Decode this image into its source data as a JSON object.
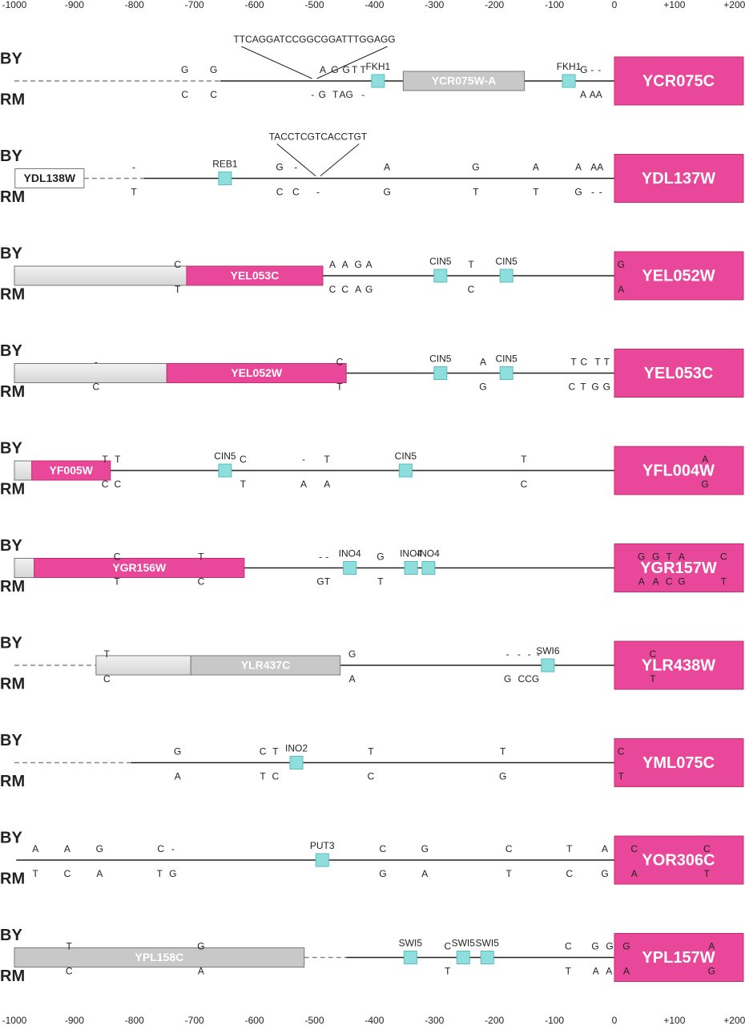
{
  "axis": {
    "lim": [
      -1000,
      200
    ],
    "ticks": [
      -1000,
      -900,
      -800,
      -700,
      -600,
      -500,
      -400,
      -300,
      -200,
      -100,
      0,
      {
        "value": 100,
        "label": "+100"
      },
      {
        "value": 200,
        "label": "+200"
      }
    ]
  },
  "strains": [
    "BY",
    "RM"
  ],
  "panels": [
    {
      "gene": "YCR075C",
      "segments": [
        {
          "from": -1000,
          "to": -657,
          "style": "dashed"
        },
        {
          "from": -657,
          "to": 0,
          "style": "solid"
        }
      ],
      "features": [
        {
          "start": -352,
          "end": -150,
          "style": "gray",
          "label": "YCR075W-A"
        }
      ],
      "sites": [
        [
          -394,
          "FKH1"
        ],
        [
          -76,
          "FKH1"
        ]
      ],
      "insert": {
        "text": "TTCAGGATCCGGCGGATTTGGAGG",
        "pos": -500
      },
      "by": [
        [
          -716,
          "G"
        ],
        [
          -668,
          "G"
        ],
        [
          -486,
          "A"
        ],
        [
          -466,
          "G"
        ],
        [
          -447,
          "G"
        ],
        [
          -433,
          "T"
        ],
        [
          -419,
          "T"
        ],
        [
          -51,
          "G"
        ],
        [
          -37,
          "-"
        ],
        [
          -25,
          "-"
        ]
      ],
      "rm": [
        [
          -716,
          "C"
        ],
        [
          -668,
          "C"
        ],
        [
          -503,
          "-"
        ],
        [
          -487,
          "G"
        ],
        [
          -465,
          "T"
        ],
        [
          -447,
          "AG"
        ],
        [
          -419,
          "-"
        ],
        [
          -52,
          "A"
        ],
        [
          -31,
          "AA"
        ]
      ]
    },
    {
      "gene": "YDL137W",
      "segments": [
        {
          "from": -884,
          "to": -784,
          "style": "dashed"
        },
        {
          "from": -784,
          "to": 0,
          "style": "solid"
        }
      ],
      "features": [
        {
          "start": -999,
          "end": -884,
          "style": "white",
          "label": "YDL138W"
        }
      ],
      "sites": [
        [
          -649,
          "REB1"
        ]
      ],
      "insert": {
        "text": "TACCTCGTCACCTGT",
        "pos": -494
      },
      "by": [
        [
          -801,
          "-"
        ],
        [
          -558,
          "G"
        ],
        [
          -531,
          "-"
        ],
        [
          -379,
          "A"
        ],
        [
          -231,
          "G"
        ],
        [
          -131,
          "A"
        ],
        [
          -60,
          "A"
        ],
        [
          -29,
          "AA"
        ]
      ],
      "rm": [
        [
          -801,
          "T"
        ],
        [
          -558,
          "C"
        ],
        [
          -531,
          "C"
        ],
        [
          -494,
          "-"
        ],
        [
          -379,
          "G"
        ],
        [
          -231,
          "T"
        ],
        [
          -131,
          "T"
        ],
        [
          -60,
          "G"
        ],
        [
          -36,
          "-"
        ],
        [
          -23,
          "-"
        ]
      ]
    },
    {
      "gene": "YEL052W",
      "segments": [
        {
          "from": -486,
          "to": 0,
          "style": "solid"
        }
      ],
      "features": [
        {
          "start": -1000,
          "end": -713,
          "style": "light",
          "label": null
        },
        {
          "start": -713,
          "end": -486,
          "style": "magenta",
          "label": "YEL053C"
        }
      ],
      "sites": [
        [
          -290,
          "CIN5"
        ],
        [
          -180,
          "CIN5"
        ]
      ],
      "by": [
        [
          -728,
          "C"
        ],
        [
          -470,
          "A"
        ],
        [
          -449,
          "A"
        ],
        [
          -427,
          "G"
        ],
        [
          -409,
          "A"
        ],
        [
          -239,
          "T"
        ],
        [
          11,
          "G"
        ]
      ],
      "rm": [
        [
          -728,
          "T"
        ],
        [
          -470,
          "C"
        ],
        [
          -449,
          "C"
        ],
        [
          -427,
          "A"
        ],
        [
          -409,
          "G"
        ],
        [
          -239,
          "C"
        ],
        [
          11,
          "A"
        ]
      ]
    },
    {
      "gene": "YEL053C",
      "segments": [
        {
          "from": -447,
          "to": 0,
          "style": "solid"
        }
      ],
      "features": [
        {
          "start": -1000,
          "end": -746,
          "style": "light",
          "label": null
        },
        {
          "start": -746,
          "end": -447,
          "style": "magenta",
          "label": "YEL052W"
        }
      ],
      "sites": [
        [
          -290,
          "CIN5"
        ],
        [
          -180,
          "CIN5"
        ]
      ],
      "by": [
        [
          -864,
          "-"
        ],
        [
          -458,
          "C"
        ],
        [
          -219,
          "A"
        ],
        [
          -68,
          "T"
        ],
        [
          -51,
          "C"
        ],
        [
          -28,
          "T"
        ],
        [
          -13,
          "T"
        ]
      ],
      "rm": [
        [
          -864,
          "C"
        ],
        [
          -458,
          "T"
        ],
        [
          -219,
          "G"
        ],
        [
          -71,
          "C"
        ],
        [
          -52,
          "T"
        ],
        [
          -32,
          "G"
        ],
        [
          -13,
          "G"
        ]
      ]
    },
    {
      "gene": "YFL004W",
      "segments": [
        {
          "from": -840,
          "to": 0,
          "style": "solid"
        }
      ],
      "features": [
        {
          "start": -1000,
          "end": -971,
          "style": "light",
          "label": null
        },
        {
          "start": -971,
          "end": -840,
          "style": "magenta",
          "label": "YF005W"
        }
      ],
      "sites": [
        [
          -649,
          "CIN5"
        ],
        [
          -348,
          "CIN5"
        ]
      ],
      "by": [
        [
          -849,
          "T"
        ],
        [
          -828,
          "T"
        ],
        [
          -619,
          "C"
        ],
        [
          -518,
          "-"
        ],
        [
          -479,
          "T"
        ],
        [
          -151,
          "T"
        ],
        [
          151,
          "A"
        ]
      ],
      "rm": [
        [
          -849,
          "C"
        ],
        [
          -828,
          "C"
        ],
        [
          -619,
          "T"
        ],
        [
          -518,
          "A"
        ],
        [
          -479,
          "A"
        ],
        [
          -151,
          "C"
        ],
        [
          151,
          "G"
        ]
      ]
    },
    {
      "gene": "YGR157W",
      "segments": [
        {
          "from": -617,
          "to": 0,
          "style": "solid"
        }
      ],
      "features": [
        {
          "start": -1000,
          "end": -967,
          "style": "light",
          "label": null
        },
        {
          "start": -967,
          "end": -617,
          "style": "magenta",
          "label": "YGR156W"
        }
      ],
      "sites": [
        [
          -441,
          "INO4"
        ],
        [
          -339,
          "INO4"
        ],
        [
          -310,
          "INO4"
        ]
      ],
      "by": [
        [
          -829,
          "C"
        ],
        [
          -689,
          "T"
        ],
        [
          -490,
          "-"
        ],
        [
          -479,
          "-"
        ],
        [
          -390,
          "G"
        ],
        [
          45,
          "G"
        ],
        [
          69,
          "G"
        ],
        [
          91,
          "T"
        ],
        [
          112,
          "A"
        ],
        [
          182,
          "C"
        ]
      ],
      "rm": [
        [
          -829,
          "T"
        ],
        [
          -689,
          "C"
        ],
        [
          -485,
          "GT"
        ],
        [
          -390,
          "T"
        ],
        [
          45,
          "A"
        ],
        [
          69,
          "A"
        ],
        [
          91,
          "C"
        ],
        [
          112,
          "G"
        ],
        [
          182,
          "T"
        ]
      ]
    },
    {
      "gene": "YLR438W",
      "segments": [
        {
          "from": -1000,
          "to": -864,
          "style": "dashed"
        },
        {
          "from": -457,
          "to": 0,
          "style": "solid"
        }
      ],
      "features": [
        {
          "start": -864,
          "end": -706,
          "style": "light",
          "label": null
        },
        {
          "start": -706,
          "end": -457,
          "style": "gray",
          "label": "YLR437C"
        }
      ],
      "sites": [
        [
          -111,
          "SWI6"
        ]
      ],
      "by": [
        [
          -846,
          "T"
        ],
        [
          -437,
          "G"
        ],
        [
          -178,
          "-"
        ],
        [
          -159,
          "-"
        ],
        [
          -142,
          "-"
        ],
        [
          -127,
          "-"
        ],
        [
          64,
          "C"
        ]
      ],
      "rm": [
        [
          -846,
          "C"
        ],
        [
          -437,
          "A"
        ],
        [
          -178,
          "G"
        ],
        [
          -143,
          "CCG"
        ],
        [
          64,
          "T"
        ]
      ]
    },
    {
      "gene": "YML075C",
      "segments": [
        {
          "from": -1000,
          "to": -806,
          "style": "dashed"
        },
        {
          "from": -806,
          "to": 0,
          "style": "solid"
        }
      ],
      "features": [],
      "sites": [
        [
          -530,
          "INO2"
        ]
      ],
      "by": [
        [
          -728,
          "G"
        ],
        [
          -586,
          "C"
        ],
        [
          -565,
          "T"
        ],
        [
          -406,
          "T"
        ],
        [
          -186,
          "T"
        ],
        [
          11,
          "C"
        ]
      ],
      "rm": [
        [
          -728,
          "A"
        ],
        [
          -586,
          "T"
        ],
        [
          -565,
          "C"
        ],
        [
          -406,
          "C"
        ],
        [
          -186,
          "G"
        ],
        [
          11,
          "T"
        ]
      ]
    },
    {
      "gene": "YOR306C",
      "segments": [
        {
          "from": -997,
          "to": 0,
          "style": "solid"
        }
      ],
      "features": [],
      "sites": [
        [
          -487,
          "PUT3"
        ]
      ],
      "by": [
        [
          -965,
          "A"
        ],
        [
          -912,
          "A"
        ],
        [
          -858,
          "G"
        ],
        [
          -756,
          "C"
        ],
        [
          -736,
          "-"
        ],
        [
          -386,
          "C"
        ],
        [
          -316,
          "G"
        ],
        [
          -176,
          "C"
        ],
        [
          -75,
          "T"
        ],
        [
          -16,
          "A"
        ],
        [
          33,
          "C"
        ],
        [
          154,
          "C"
        ]
      ],
      "rm": [
        [
          -965,
          "T"
        ],
        [
          -912,
          "C"
        ],
        [
          -858,
          "A"
        ],
        [
          -758,
          "T"
        ],
        [
          -736,
          "G"
        ],
        [
          -386,
          "G"
        ],
        [
          -316,
          "A"
        ],
        [
          -176,
          "T"
        ],
        [
          -75,
          "C"
        ],
        [
          -16,
          "G"
        ],
        [
          33,
          "A"
        ],
        [
          154,
          "T"
        ]
      ]
    },
    {
      "gene": "YPL157W",
      "segments": [
        {
          "from": -517,
          "to": -447,
          "style": "dashed"
        },
        {
          "from": -447,
          "to": 0,
          "style": "solid"
        }
      ],
      "features": [
        {
          "start": -1000,
          "end": -517,
          "style": "gray",
          "label": "YPL158C"
        }
      ],
      "sites": [
        [
          -340,
          "SWI5"
        ],
        [
          -252,
          "SWI5"
        ],
        [
          -212,
          "SWI5"
        ]
      ],
      "by": [
        [
          -909,
          "T"
        ],
        [
          -689,
          "G"
        ],
        [
          -278,
          "C"
        ],
        [
          -77,
          "C"
        ],
        [
          -32,
          "G"
        ],
        [
          -8,
          "G"
        ],
        [
          20,
          "G"
        ],
        [
          162,
          "A"
        ]
      ],
      "rm": [
        [
          -909,
          "C"
        ],
        [
          -689,
          "A"
        ],
        [
          -278,
          "T"
        ],
        [
          -77,
          "T"
        ],
        [
          -31,
          "A"
        ],
        [
          -9,
          "A"
        ],
        [
          20,
          "A"
        ],
        [
          162,
          "G"
        ]
      ]
    }
  ]
}
